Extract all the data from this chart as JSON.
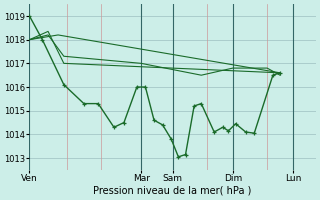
{
  "background_color": "#cceee8",
  "grid_color_h": "#aacccc",
  "grid_color_v": "#cc9999",
  "line_color": "#1a6b2a",
  "ylim": [
    1012.5,
    1019.5
  ],
  "yticks": [
    1013,
    1014,
    1015,
    1016,
    1017,
    1018,
    1019
  ],
  "ylabel_fontsize": 6.5,
  "xlabel": "Pression niveau de la mer( hPa )",
  "xlabel_fontsize": 7,
  "day_labels": [
    "Ven",
    "Mar",
    "Sam",
    "Dim",
    "Lun"
  ],
  "day_positions": [
    0.0,
    0.39,
    0.5,
    0.71,
    0.92
  ],
  "vert_grid_positions": [
    0.0,
    0.13,
    0.25,
    0.39,
    0.5,
    0.62,
    0.71,
    0.83,
    0.92,
    1.0
  ],
  "series_main": [
    [
      0.0,
      1019.0
    ],
    [
      0.045,
      1018.0
    ],
    [
      0.12,
      1016.1
    ],
    [
      0.19,
      1015.3
    ],
    [
      0.24,
      1015.3
    ],
    [
      0.295,
      1014.3
    ],
    [
      0.33,
      1014.5
    ],
    [
      0.375,
      1016.0
    ],
    [
      0.405,
      1016.0
    ],
    [
      0.435,
      1014.6
    ],
    [
      0.465,
      1014.4
    ],
    [
      0.495,
      1013.8
    ],
    [
      0.52,
      1013.05
    ],
    [
      0.545,
      1013.15
    ],
    [
      0.575,
      1015.2
    ],
    [
      0.6,
      1015.3
    ],
    [
      0.645,
      1014.1
    ],
    [
      0.675,
      1014.3
    ],
    [
      0.695,
      1014.15
    ],
    [
      0.72,
      1014.45
    ],
    [
      0.755,
      1014.1
    ],
    [
      0.785,
      1014.05
    ],
    [
      0.85,
      1016.5
    ],
    [
      0.875,
      1016.6
    ]
  ],
  "series_lines": [
    [
      [
        0.0,
        1018.0
      ],
      [
        0.065,
        1018.35
      ],
      [
        0.12,
        1017.0
      ],
      [
        0.875,
        1016.6
      ]
    ],
    [
      [
        0.0,
        1018.0
      ],
      [
        0.065,
        1018.2
      ],
      [
        0.12,
        1017.3
      ],
      [
        0.39,
        1017.0
      ],
      [
        0.6,
        1016.5
      ],
      [
        0.71,
        1016.8
      ],
      [
        0.83,
        1016.8
      ],
      [
        0.875,
        1016.5
      ]
    ],
    [
      [
        0.0,
        1018.0
      ],
      [
        0.1,
        1018.2
      ],
      [
        0.875,
        1016.6
      ]
    ]
  ]
}
